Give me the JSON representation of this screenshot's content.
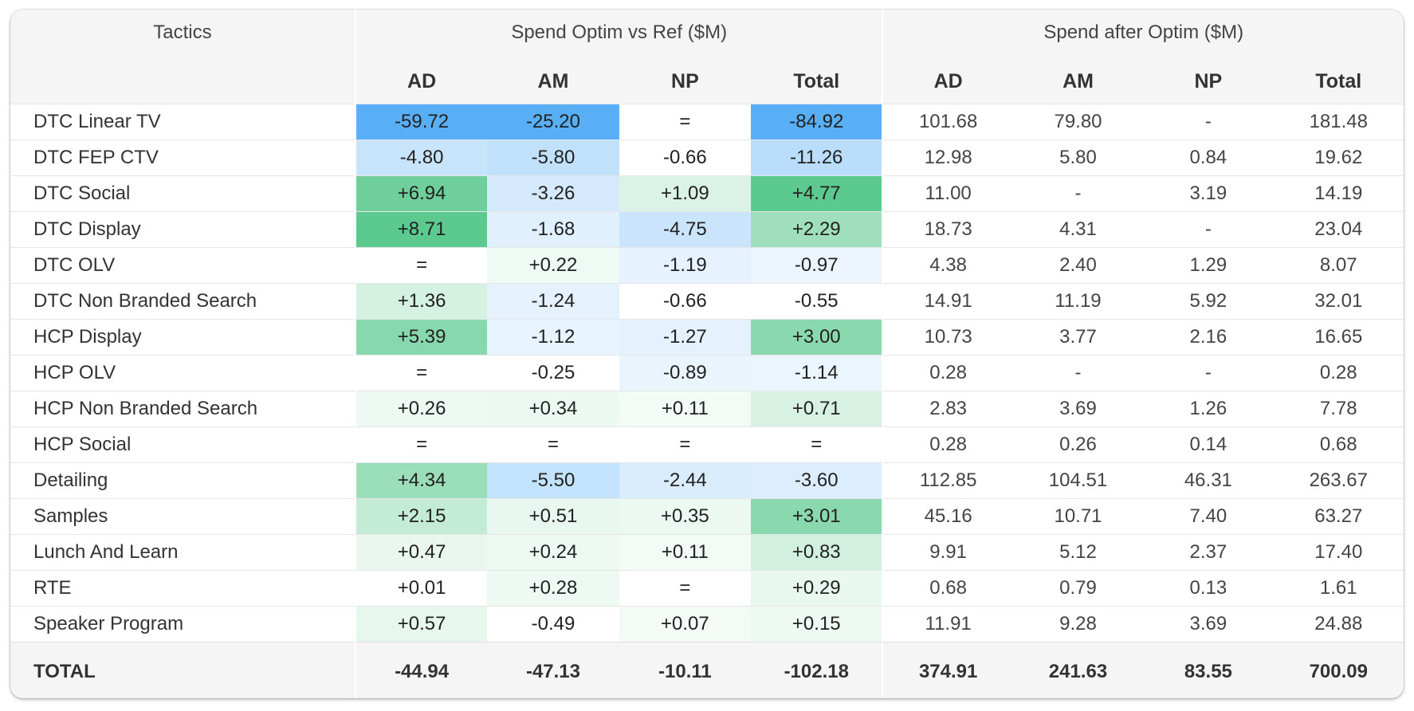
{
  "header": {
    "tactics_label": "Tactics",
    "group_optim": "Spend Optim vs Ref ($M)",
    "group_after": "Spend after Optim ($M)",
    "sub_cols": [
      "AD",
      "AM",
      "NP",
      "Total"
    ]
  },
  "heat_colors": {
    "blue_strong": "#58aff5",
    "blue_light": "#b8dcfa",
    "blue_pale": "#e9f4fd",
    "green_strong": "#5cc98f",
    "green_mid": "#9ce0bb"
  },
  "rows": [
    {
      "tactic": "DTC Linear TV",
      "optim": [
        "-59.72",
        "-25.20",
        "=",
        "-84.92"
      ],
      "after": [
        "101.68",
        "79.80",
        "-",
        "181.48"
      ]
    },
    {
      "tactic": "DTC FEP CTV",
      "optim": [
        "-4.80",
        "-5.80",
        "-0.66",
        "-11.26"
      ],
      "after": [
        "12.98",
        "5.80",
        "0.84",
        "19.62"
      ]
    },
    {
      "tactic": "DTC Social",
      "optim": [
        "+6.94",
        "-3.26",
        "+1.09",
        "+4.77"
      ],
      "after": [
        "11.00",
        "-",
        "3.19",
        "14.19"
      ]
    },
    {
      "tactic": "DTC Display",
      "optim": [
        "+8.71",
        "-1.68",
        "-4.75",
        "+2.29"
      ],
      "after": [
        "18.73",
        "4.31",
        "-",
        "23.04"
      ]
    },
    {
      "tactic": "DTC OLV",
      "optim": [
        "=",
        "+0.22",
        "-1.19",
        "-0.97"
      ],
      "after": [
        "4.38",
        "2.40",
        "1.29",
        "8.07"
      ]
    },
    {
      "tactic": "DTC Non Branded Search",
      "optim": [
        "+1.36",
        "-1.24",
        "-0.66",
        "-0.55"
      ],
      "after": [
        "14.91",
        "11.19",
        "5.92",
        "32.01"
      ]
    },
    {
      "tactic": "HCP Display",
      "optim": [
        "+5.39",
        "-1.12",
        "-1.27",
        "+3.00"
      ],
      "after": [
        "10.73",
        "3.77",
        "2.16",
        "16.65"
      ]
    },
    {
      "tactic": "HCP OLV",
      "optim": [
        "=",
        "-0.25",
        "-0.89",
        "-1.14"
      ],
      "after": [
        "0.28",
        "-",
        "-",
        "0.28"
      ]
    },
    {
      "tactic": "HCP Non Branded Search",
      "optim": [
        "+0.26",
        "+0.34",
        "+0.11",
        "+0.71"
      ],
      "after": [
        "2.83",
        "3.69",
        "1.26",
        "7.78"
      ]
    },
    {
      "tactic": "HCP Social",
      "optim": [
        "=",
        "=",
        "=",
        "="
      ],
      "after": [
        "0.28",
        "0.26",
        "0.14",
        "0.68"
      ]
    },
    {
      "tactic": "Detailing",
      "optim": [
        "+4.34",
        "-5.50",
        "-2.44",
        "-3.60"
      ],
      "after": [
        "112.85",
        "104.51",
        "46.31",
        "263.67"
      ]
    },
    {
      "tactic": "Samples",
      "optim": [
        "+2.15",
        "+0.51",
        "+0.35",
        "+3.01"
      ],
      "after": [
        "45.16",
        "10.71",
        "7.40",
        "63.27"
      ]
    },
    {
      "tactic": "Lunch And Learn",
      "optim": [
        "+0.47",
        "+0.24",
        "+0.11",
        "+0.83"
      ],
      "after": [
        "9.91",
        "5.12",
        "2.37",
        "17.40"
      ]
    },
    {
      "tactic": "RTE",
      "optim": [
        "+0.01",
        "+0.28",
        "=",
        "+0.29"
      ],
      "after": [
        "0.68",
        "0.79",
        "0.13",
        "1.61"
      ]
    },
    {
      "tactic": "Speaker Program",
      "optim": [
        "+0.57",
        "-0.49",
        "+0.07",
        "+0.15"
      ],
      "after": [
        "11.91",
        "9.28",
        "3.69",
        "24.88"
      ]
    }
  ],
  "total": {
    "label": "TOTAL",
    "optim": [
      "-44.94",
      "-47.13",
      "-10.11",
      "-102.18"
    ],
    "after": [
      "374.91",
      "241.63",
      "83.55",
      "700.09"
    ]
  }
}
